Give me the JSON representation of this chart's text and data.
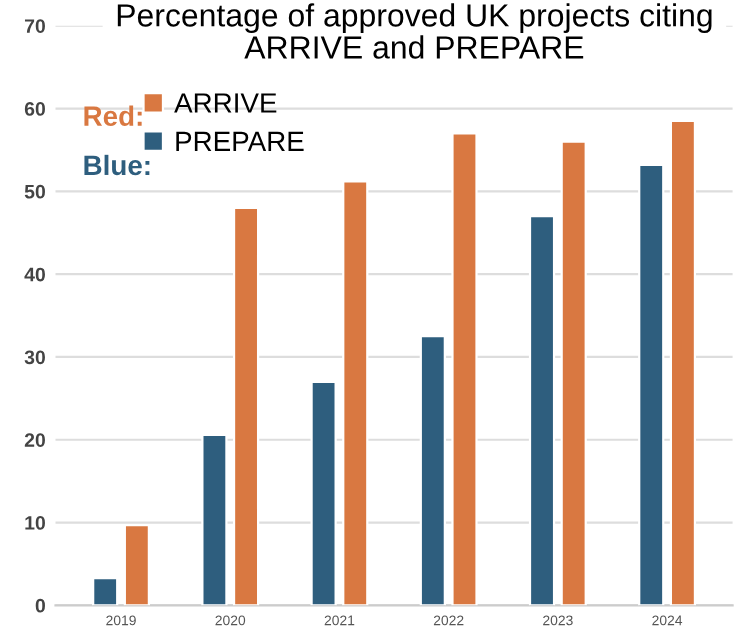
{
  "chart_data": {
    "type": "bar",
    "title": "Percentage of approved UK projects citing\nARRIVE and PREPARE",
    "categories": [
      "2019",
      "2020",
      "2021",
      "2022",
      "2023",
      "2024"
    ],
    "series": [
      {
        "name": "PREPARE",
        "color": "#2e5e7e",
        "values": [
          3.3,
          20.6,
          27.0,
          32.5,
          47.0,
          53.2
        ]
      },
      {
        "name": "ARRIVE",
        "color": "#d97841",
        "values": [
          9.7,
          48.0,
          51.2,
          57.0,
          56.0,
          58.5
        ]
      }
    ],
    "annotations": [
      "Blue:",
      "Red:"
    ],
    "ylim": [
      0,
      70
    ],
    "yticks": [
      0,
      10,
      20,
      30,
      40,
      50,
      60,
      70
    ],
    "grid": "y",
    "legend": "top left"
  }
}
